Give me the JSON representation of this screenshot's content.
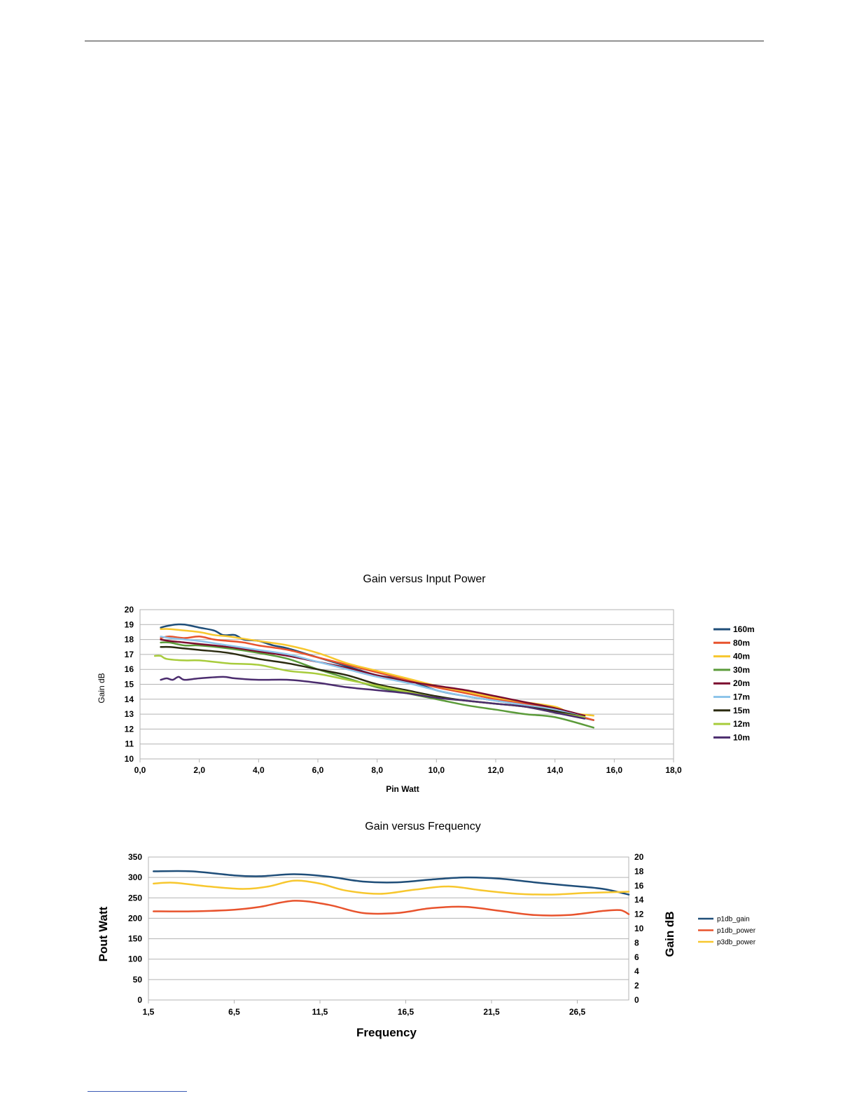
{
  "chart_data": [
    {
      "type": "line",
      "title": "Gain versus Input Power",
      "xlabel": "Pin Watt",
      "ylabel": "Gain dB",
      "xlim": [
        0,
        18
      ],
      "ylim": [
        10,
        20
      ],
      "x_ticks": [
        "0,0",
        "2,0",
        "4,0",
        "6,0",
        "8,0",
        "10,0",
        "12,0",
        "14,0",
        "16,0",
        "18,0"
      ],
      "y_ticks": [
        "10",
        "11",
        "12",
        "13",
        "14",
        "15",
        "16",
        "17",
        "18",
        "19",
        "20"
      ],
      "grid": true,
      "legend_position": "right",
      "series": [
        {
          "name": "160m",
          "color": "#1f4e79",
          "points": [
            [
              0.7,
              18.8
            ],
            [
              0.9,
              18.9
            ],
            [
              1.2,
              19.0
            ],
            [
              1.5,
              19.0
            ],
            [
              2.0,
              18.8
            ],
            [
              2.5,
              18.6
            ],
            [
              2.8,
              18.3
            ],
            [
              3.2,
              18.3
            ],
            [
              3.5,
              18.0
            ],
            [
              4.0,
              17.9
            ],
            [
              4.5,
              17.6
            ],
            [
              5.0,
              17.4
            ],
            [
              6.0,
              16.8
            ],
            [
              7.0,
              16.2
            ],
            [
              8.0,
              15.6
            ],
            [
              9.0,
              15.3
            ],
            [
              10.0,
              14.6
            ],
            [
              11.0,
              14.2
            ],
            [
              12.0,
              13.9
            ],
            [
              13.0,
              13.6
            ],
            [
              14.0,
              13.2
            ],
            [
              15.3,
              12.6
            ]
          ]
        },
        {
          "name": "80m",
          "color": "#e8532d",
          "points": [
            [
              0.7,
              18.1
            ],
            [
              1.0,
              18.2
            ],
            [
              1.5,
              18.1
            ],
            [
              2.0,
              18.2
            ],
            [
              2.5,
              18.0
            ],
            [
              3.0,
              17.9
            ],
            [
              3.5,
              17.8
            ],
            [
              4.0,
              17.6
            ],
            [
              5.0,
              17.3
            ],
            [
              6.0,
              16.8
            ],
            [
              7.0,
              16.3
            ],
            [
              8.0,
              15.8
            ],
            [
              9.0,
              15.3
            ],
            [
              10.0,
              14.8
            ],
            [
              11.0,
              14.4
            ],
            [
              12.0,
              14.0
            ],
            [
              13.0,
              13.7
            ],
            [
              14.0,
              13.3
            ],
            [
              15.3,
              12.6
            ]
          ]
        },
        {
          "name": "40m",
          "color": "#f7c72e",
          "points": [
            [
              0.7,
              18.7
            ],
            [
              1.0,
              18.7
            ],
            [
              1.5,
              18.6
            ],
            [
              2.0,
              18.5
            ],
            [
              2.5,
              18.3
            ],
            [
              3.0,
              18.2
            ],
            [
              4.0,
              17.9
            ],
            [
              5.0,
              17.6
            ],
            [
              6.0,
              17.1
            ],
            [
              7.0,
              16.4
            ],
            [
              8.0,
              15.9
            ],
            [
              9.0,
              15.4
            ],
            [
              10.0,
              14.9
            ],
            [
              11.0,
              14.5
            ],
            [
              12.0,
              14.1
            ],
            [
              13.0,
              13.8
            ],
            [
              14.0,
              13.5
            ],
            [
              14.5,
              13.1
            ],
            [
              15.3,
              12.9
            ]
          ]
        },
        {
          "name": "30m",
          "color": "#5b9b3a",
          "points": [
            [
              0.7,
              17.8
            ],
            [
              1.0,
              17.8
            ],
            [
              1.5,
              17.6
            ],
            [
              2.0,
              17.6
            ],
            [
              3.0,
              17.4
            ],
            [
              4.0,
              17.1
            ],
            [
              5.0,
              16.7
            ],
            [
              6.0,
              16.0
            ],
            [
              7.0,
              15.4
            ],
            [
              8.0,
              14.8
            ],
            [
              9.0,
              14.4
            ],
            [
              10.0,
              14.0
            ],
            [
              11.0,
              13.6
            ],
            [
              12.0,
              13.3
            ],
            [
              13.0,
              13.0
            ],
            [
              14.0,
              12.8
            ],
            [
              15.3,
              12.1
            ]
          ]
        },
        {
          "name": "20m",
          "color": "#7b0d2e",
          "points": [
            [
              0.7,
              18.0
            ],
            [
              1.0,
              17.9
            ],
            [
              1.5,
              17.8
            ],
            [
              2.0,
              17.7
            ],
            [
              3.0,
              17.5
            ],
            [
              4.0,
              17.2
            ],
            [
              5.0,
              16.9
            ],
            [
              6.0,
              16.5
            ],
            [
              7.0,
              16.1
            ],
            [
              8.0,
              15.6
            ],
            [
              9.0,
              15.2
            ],
            [
              10.0,
              14.9
            ],
            [
              11.0,
              14.6
            ],
            [
              12.0,
              14.2
            ],
            [
              13.0,
              13.8
            ],
            [
              14.0,
              13.4
            ],
            [
              15.0,
              12.9
            ]
          ]
        },
        {
          "name": "17m",
          "color": "#8ec5ea",
          "points": [
            [
              0.7,
              18.2
            ],
            [
              1.0,
              18.1
            ],
            [
              1.5,
              18.0
            ],
            [
              2.0,
              17.9
            ],
            [
              3.0,
              17.6
            ],
            [
              4.0,
              17.3
            ],
            [
              5.0,
              17.0
            ],
            [
              6.0,
              16.5
            ],
            [
              7.0,
              16.0
            ],
            [
              8.0,
              15.5
            ],
            [
              9.0,
              15.1
            ],
            [
              10.0,
              14.6
            ],
            [
              11.0,
              14.2
            ],
            [
              12.0,
              13.9
            ],
            [
              13.0,
              13.6
            ],
            [
              14.0,
              13.3
            ],
            [
              15.0,
              12.8
            ]
          ]
        },
        {
          "name": "15m",
          "color": "#2b2b10",
          "points": [
            [
              0.7,
              17.5
            ],
            [
              1.0,
              17.5
            ],
            [
              1.5,
              17.4
            ],
            [
              2.0,
              17.3
            ],
            [
              3.0,
              17.1
            ],
            [
              4.0,
              16.7
            ],
            [
              5.0,
              16.4
            ],
            [
              6.0,
              16.0
            ],
            [
              7.0,
              15.6
            ],
            [
              8.0,
              15.0
            ],
            [
              9.0,
              14.6
            ],
            [
              10.0,
              14.2
            ],
            [
              11.0,
              13.9
            ],
            [
              12.0,
              13.7
            ],
            [
              13.0,
              13.5
            ],
            [
              14.0,
              13.2
            ],
            [
              15.0,
              12.8
            ]
          ]
        },
        {
          "name": "12m",
          "color": "#a8cc3c",
          "points": [
            [
              0.5,
              16.9
            ],
            [
              0.7,
              16.9
            ],
            [
              0.9,
              16.7
            ],
            [
              1.5,
              16.6
            ],
            [
              2.0,
              16.6
            ],
            [
              3.0,
              16.4
            ],
            [
              4.0,
              16.3
            ],
            [
              5.0,
              15.9
            ],
            [
              6.0,
              15.7
            ],
            [
              7.0,
              15.3
            ],
            [
              8.0,
              14.9
            ],
            [
              9.0,
              14.5
            ],
            [
              10.0,
              14.1
            ],
            [
              11.0,
              13.9
            ],
            [
              12.0,
              13.7
            ],
            [
              13.0,
              13.5
            ],
            [
              14.0,
              13.1
            ],
            [
              15.0,
              12.8
            ]
          ]
        },
        {
          "name": "10m",
          "color": "#4b2c6e",
          "points": [
            [
              0.7,
              15.3
            ],
            [
              0.9,
              15.4
            ],
            [
              1.1,
              15.3
            ],
            [
              1.3,
              15.5
            ],
            [
              1.5,
              15.3
            ],
            [
              2.0,
              15.4
            ],
            [
              2.8,
              15.5
            ],
            [
              3.2,
              15.4
            ],
            [
              4.0,
              15.3
            ],
            [
              5.0,
              15.3
            ],
            [
              6.0,
              15.1
            ],
            [
              7.0,
              14.8
            ],
            [
              8.0,
              14.6
            ],
            [
              9.0,
              14.4
            ],
            [
              10.0,
              14.1
            ],
            [
              11.0,
              13.9
            ],
            [
              12.0,
              13.7
            ],
            [
              13.0,
              13.5
            ],
            [
              14.0,
              13.1
            ],
            [
              15.0,
              12.7
            ]
          ]
        }
      ]
    },
    {
      "type": "line",
      "title": "Gain versus Frequency",
      "xlabel": "Frequency",
      "ylabel": "Pout Watt",
      "y2label": "Gain dB",
      "xlim": [
        1.5,
        29.5
      ],
      "ylim": [
        0,
        350
      ],
      "y2lim": [
        0,
        20
      ],
      "x_ticks": [
        {
          "value": 1.5,
          "label": "1,5"
        },
        {
          "value": 6.5,
          "label": "6,5"
        },
        {
          "value": 11.5,
          "label": "11,5"
        },
        {
          "value": 16.5,
          "label": "16,5"
        },
        {
          "value": 21.5,
          "label": "21,5"
        },
        {
          "value": 26.5,
          "label": "26,5"
        }
      ],
      "y_ticks": [
        "0",
        "50",
        "100",
        "150",
        "200",
        "250",
        "300",
        "350"
      ],
      "y2_ticks": [
        "0",
        "2",
        "4",
        "6",
        "8",
        "10",
        "12",
        "14",
        "16",
        "18",
        "20"
      ],
      "grid": true,
      "legend_position": "right",
      "series": [
        {
          "name": "p1db_gain",
          "color": "#1f4e79",
          "axis": "left",
          "points": [
            [
              1.8,
              315
            ],
            [
              4,
              315
            ],
            [
              6.5,
              305
            ],
            [
              8,
              303
            ],
            [
              10,
              308
            ],
            [
              12,
              302
            ],
            [
              14,
              290
            ],
            [
              16,
              288
            ],
            [
              18,
              295
            ],
            [
              20,
              300
            ],
            [
              22,
              297
            ],
            [
              24,
              288
            ],
            [
              26,
              280
            ],
            [
              28,
              272
            ],
            [
              29.5,
              258
            ]
          ]
        },
        {
          "name": "p1db_power",
          "color": "#e8532d",
          "axis": "left",
          "points": [
            [
              1.8,
              217
            ],
            [
              4,
              217
            ],
            [
              6.5,
              221
            ],
            [
              8,
              228
            ],
            [
              10,
              243
            ],
            [
              12,
              233
            ],
            [
              14,
              213
            ],
            [
              16,
              213
            ],
            [
              18,
              225
            ],
            [
              20,
              228
            ],
            [
              22,
              218
            ],
            [
              24,
              208
            ],
            [
              26,
              208
            ],
            [
              28,
              218
            ],
            [
              29,
              220
            ],
            [
              29.5,
              210
            ]
          ]
        },
        {
          "name": "p3db_power",
          "color": "#f7c72e",
          "axis": "left",
          "points": [
            [
              1.8,
              285
            ],
            [
              3,
              287
            ],
            [
              5,
              278
            ],
            [
              7,
              272
            ],
            [
              8.5,
              278
            ],
            [
              10,
              292
            ],
            [
              11.5,
              285
            ],
            [
              13,
              268
            ],
            [
              15,
              260
            ],
            [
              17,
              270
            ],
            [
              19,
              278
            ],
            [
              21,
              268
            ],
            [
              23,
              260
            ],
            [
              25,
              258
            ],
            [
              27,
              262
            ],
            [
              29.5,
              265
            ]
          ]
        }
      ]
    }
  ]
}
